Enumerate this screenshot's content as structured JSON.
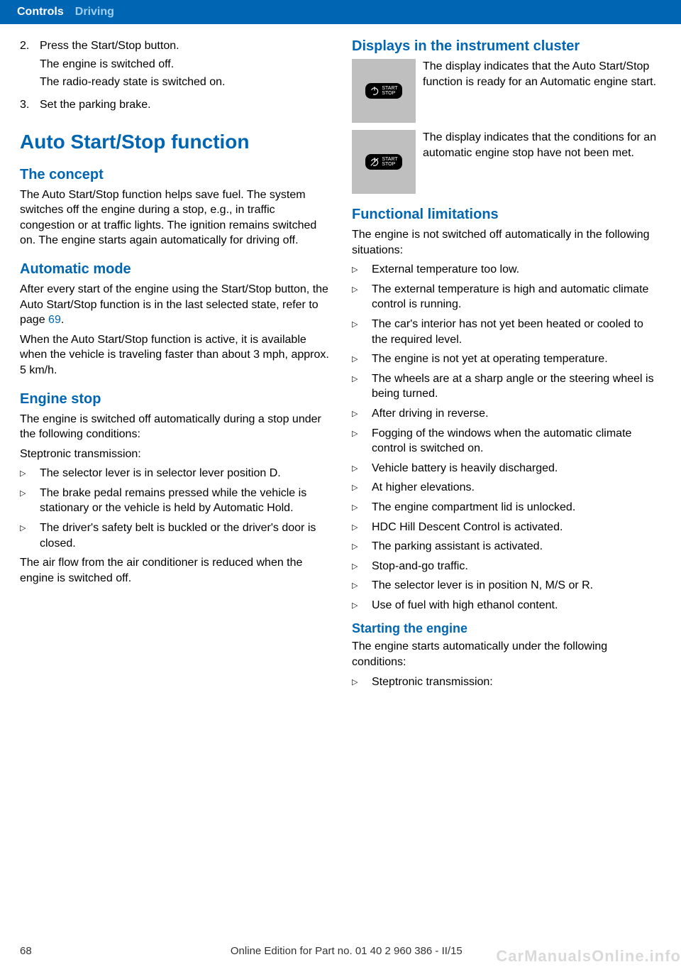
{
  "header": {
    "tab_primary": "Controls",
    "tab_secondary": "Driving",
    "bg_color": "#0066b3",
    "primary_color": "#ffffff",
    "secondary_color": "#9fcff0"
  },
  "left_col": {
    "step2_num": "2.",
    "step2_line1": "Press the Start/Stop button.",
    "step2_line2": "The engine is switched off.",
    "step2_line3": "The radio-ready state is switched on.",
    "step3_num": "3.",
    "step3_line1": "Set the parking brake.",
    "h1": "Auto Start/Stop function",
    "h2_concept": "The concept",
    "p_concept": "The Auto Start/Stop function helps save fuel. The system switches off the engine during a stop, e.g., in traffic congestion or at traffic lights. The ignition remains switched on. The engine starts again automatically for driving off.",
    "h2_auto": "Automatic mode",
    "p_auto_1": "After every start of the engine using the Start/Stop button, the Auto Start/Stop function is in the last selected state, refer to page ",
    "p_auto_ref": "69",
    "p_auto_1b": ".",
    "p_auto_2": "When the Auto Start/Stop function is active, it is available when the vehicle is traveling faster than about 3 mph, approx. 5 km/h.",
    "h2_stop": "Engine stop",
    "p_stop_1": "The engine is switched off automatically during a stop under the following conditions:",
    "p_stop_2": "Steptronic transmission:",
    "stop_items": [
      "The selector lever is in selector lever position D.",
      "The brake pedal remains pressed while the vehicle is stationary or the vehicle is held by Automatic Hold.",
      "The driver's safety belt is buckled or the driver's door is closed."
    ],
    "p_stop_3": "The air flow from the air conditioner is reduced when the engine is switched off."
  },
  "right_col": {
    "h2_disp": "Displays in the instrument cluster",
    "disp1_label": "START\nSTOP",
    "disp1_text": "The display indicates that the Auto Start/Stop function is ready for an Automatic engine start.",
    "disp2_label": "START\nSTOP",
    "disp2_text": "The display indicates that the conditions for an automatic engine stop have not been met.",
    "h2_func": "Functional limitations",
    "p_func": "The engine is not switched off automatically in the following situations:",
    "func_items": [
      "External temperature too low.",
      "The external temperature is high and automatic climate control is running.",
      "The car's interior has not yet been heated or cooled to the required level.",
      "The engine is not yet at operating temperature.",
      "The wheels are at a sharp angle or the steering wheel is being turned.",
      "After driving in reverse.",
      "Fogging of the windows when the automatic climate control is switched on.",
      "Vehicle battery is heavily discharged.",
      "At higher elevations.",
      "The engine compartment lid is unlocked.",
      "HDC Hill Descent Control is activated.",
      "The parking assistant is activated.",
      "Stop-and-go traffic.",
      "The selector lever is in position N, M/S or R.",
      "Use of fuel with high ethanol content."
    ],
    "h3_start": "Starting the engine",
    "p_start": "The engine starts automatically under the following conditions:",
    "start_items": [
      "Steptronic transmission:"
    ]
  },
  "footer": {
    "page": "68",
    "edition": "Online Edition for Part no. 01 40 2 960 386 - II/15",
    "watermark": "CarManualsOnline.info"
  },
  "colors": {
    "heading": "#0066b3",
    "text": "#000000",
    "icon_bg": "#bfbfbf",
    "footer_text": "#333333"
  },
  "bullet_glyph": "▷"
}
